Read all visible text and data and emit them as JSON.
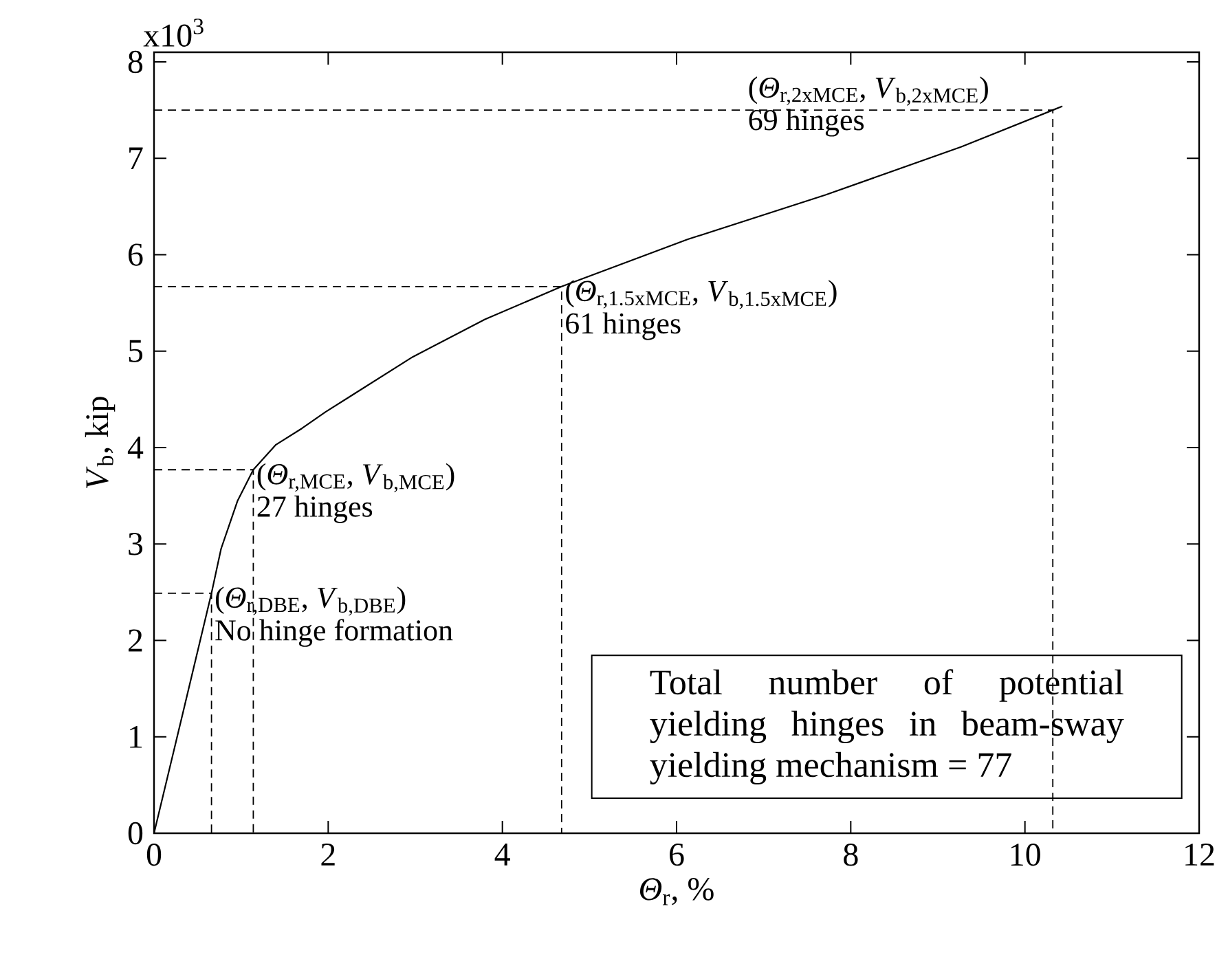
{
  "chart_data": {
    "type": "line",
    "xlabel": "*Θ*$_{r}$, %",
    "ylabel": "*V*$_{b}$, kip",
    "x": [
      0,
      0.34,
      0.66,
      0.77,
      0.96,
      1.14,
      1.4,
      1.7,
      1.97,
      2.97,
      3.8,
      4.68,
      6.13,
      7.71,
      9.27,
      10.32,
      10.43
    ],
    "series": [
      {
        "color": "#000000",
        "values": [
          0,
          1.28,
          2.49,
          2.95,
          3.45,
          3.77,
          4.03,
          4.2,
          4.37,
          4.94,
          5.33,
          5.67,
          6.16,
          6.62,
          7.12,
          7.5,
          7.54
        ]
      },
      {
        "type": "line",
        "line_style": "dashed",
        "color": "#000000",
        "x": [
          0,
          0.66,
          0.66
        ],
        "values": [
          2.49,
          2.49,
          0
        ]
      },
      {
        "type": "line",
        "line_style": "dashed",
        "color": "#000000",
        "x": [
          0,
          1.14,
          1.14
        ],
        "values": [
          3.77,
          3.77,
          0
        ]
      },
      {
        "type": "line",
        "line_style": "dashed",
        "color": "#000000",
        "x": [
          0,
          4.68,
          4.68
        ],
        "values": [
          5.67,
          5.67,
          0
        ]
      },
      {
        "type": "line",
        "line_style": "dashed",
        "color": "#000000",
        "x": [
          0,
          10.32,
          10.32
        ],
        "values": [
          7.5,
          7.5,
          0
        ]
      }
    ],
    "xlim": [
      0,
      12
    ],
    "ylim": [
      0,
      8.1
    ],
    "xticks": [
      0,
      2,
      4,
      6,
      8,
      10,
      12
    ],
    "yticks": [
      0,
      1,
      2,
      3,
      4,
      5,
      6,
      7,
      8
    ],
    "marker": "none",
    "line_style": "solid",
    "grid": false,
    "annotations": [
      "x10$^{3}$",
      {
        "text": "(*Θ*$_{r,DBE}$, *V*$_{b,DBE}$)",
        "x": 0.66,
        "y": 2.49
      },
      "No hinge formation",
      {
        "text": "(*Θ*$_{r,MCE}$, *V*$_{b,MCE}$)",
        "x": 1.14,
        "y": 3.77
      },
      "27 hinges",
      {
        "text": "(*Θ*$_{r,1.5xMCE}$, *V*$_{b,1.5xMCE}$)",
        "x": 4.68,
        "y": 5.67
      },
      "61 hinges",
      {
        "text": "(*Θ*$_{r,2xMCE}$, *V*$_{b,2xMCE}$)",
        "x": 10.32,
        "y": 7.5
      },
      "69 hinges",
      "Total number of potential yielding hinges in beam-sway yielding mechanism = 77"
    ]
  }
}
